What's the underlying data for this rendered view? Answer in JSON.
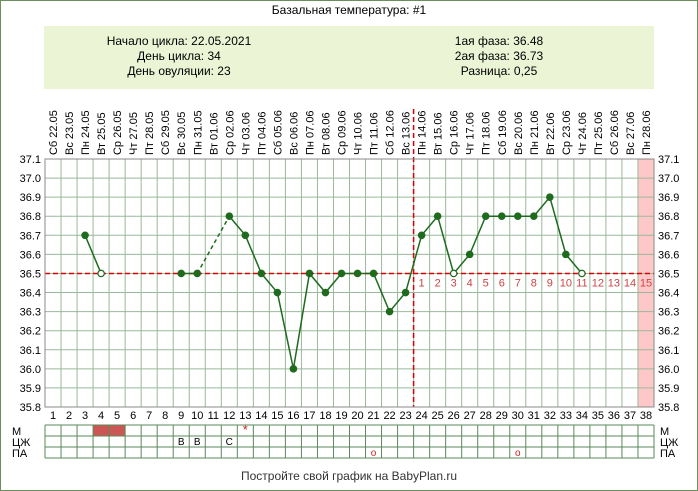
{
  "title": "Базальная температура: #1",
  "info": {
    "cycle_start": "Начало цикла: 22.05.2021",
    "cycle_day": "День цикла: 34",
    "ovulation_day": "День овуляции: 23",
    "phase1": "1ая фаза: 36.48",
    "phase2": "2ая фаза: 36.73",
    "difference": "Разница: 0,25"
  },
  "footer": "Постройте свой график на BabyPlan.ru",
  "colors": {
    "line": "#1e6b1e",
    "coverline": "#dd0000",
    "grid": "#9ab89a",
    "info_bg": "#ecf4d6",
    "menses": "#cc5555",
    "highlight_column": "#ffc8c8",
    "post_ovulation_numbers": "#cc4444"
  },
  "chart_data": {
    "type": "line",
    "title": "Базальная температура: #1",
    "xlabel": "",
    "ylabel": "",
    "ylim": [
      35.8,
      37.1
    ],
    "yticks": [
      "35.8",
      "35.9",
      "36.0",
      "36.1",
      "36.2",
      "36.3",
      "36.4",
      "36.5",
      "36.6",
      "36.7",
      "36.8",
      "36.9",
      "37.0",
      "37.1"
    ],
    "grid": true,
    "cycle_days": [
      "1",
      "2",
      "3",
      "4",
      "5",
      "6",
      "7",
      "8",
      "9",
      "10",
      "11",
      "12",
      "13",
      "14",
      "15",
      "16",
      "17",
      "18",
      "19",
      "20",
      "21",
      "22",
      "23",
      "24",
      "25",
      "26",
      "27",
      "28",
      "29",
      "30",
      "31",
      "32",
      "33",
      "34",
      "35",
      "36",
      "37",
      "38"
    ],
    "date_labels": [
      "Сб 22.05",
      "Вс 23.05",
      "Пн 24.05",
      "Вт 25.05",
      "Ср 26.05",
      "Чт 27.05",
      "Пт 28.05",
      "Сб 29.05",
      "Вс 30.05",
      "Пн 31.05",
      "Вт 01.06",
      "Ср 02.06",
      "Чт 03.06",
      "Пт 04.06",
      "Сб 05.06",
      "Вс 06.06",
      "Пн 07.06",
      "Вт 08.06",
      "Ср 09.06",
      "Чт 10.06",
      "Пт 11.06",
      "Сб 12.06",
      "Вс 13.06",
      "Пн 14.06",
      "Вт 15.06",
      "Ср 16.06",
      "Чт 17.06",
      "Пт 18.06",
      "Сб 19.06",
      "Вс 20.06",
      "Пн 21.06",
      "Вт 22.06",
      "Ср 23.06",
      "Чт 24.06",
      "Пт 25.06",
      "Сб 26.06",
      "Вс 27.06",
      "Пн 28.06"
    ],
    "coverline": 36.5,
    "ovulation_day": 23,
    "highlight_day": 38,
    "series": [
      {
        "points": [
          {
            "x": 3,
            "y": 36.7
          },
          {
            "x": 4,
            "y": 36.5,
            "hollow": true
          },
          {
            "x": 9,
            "y": 36.5
          },
          {
            "x": 10,
            "y": 36.5
          },
          {
            "x": 12,
            "y": 36.8
          },
          {
            "x": 13,
            "y": 36.7
          },
          {
            "x": 14,
            "y": 36.5
          },
          {
            "x": 15,
            "y": 36.4
          },
          {
            "x": 16,
            "y": 36.0
          },
          {
            "x": 17,
            "y": 36.5
          },
          {
            "x": 18,
            "y": 36.4
          },
          {
            "x": 19,
            "y": 36.5
          },
          {
            "x": 20,
            "y": 36.5
          },
          {
            "x": 21,
            "y": 36.5
          },
          {
            "x": 22,
            "y": 36.3
          },
          {
            "x": 23,
            "y": 36.4
          },
          {
            "x": 24,
            "y": 36.7
          },
          {
            "x": 25,
            "y": 36.8
          },
          {
            "x": 26,
            "y": 36.5,
            "hollow": true
          },
          {
            "x": 27,
            "y": 36.6
          },
          {
            "x": 28,
            "y": 36.8
          },
          {
            "x": 29,
            "y": 36.8
          },
          {
            "x": 30,
            "y": 36.8
          },
          {
            "x": 31,
            "y": 36.8
          },
          {
            "x": 32,
            "y": 36.9
          },
          {
            "x": 33,
            "y": 36.6
          },
          {
            "x": 34,
            "y": 36.5,
            "hollow": true
          }
        ],
        "segments": [
          {
            "from": 3,
            "to": 4,
            "dashed": false
          },
          {
            "from": 9,
            "to": 10,
            "dashed": false
          },
          {
            "from": 10,
            "to": 12,
            "dashed": true
          },
          {
            "from": 12,
            "to": 34,
            "dashed": false
          }
        ]
      }
    ],
    "post_ovulation_labels": [
      {
        "day": 24,
        "label": "1"
      },
      {
        "day": 25,
        "label": "2"
      },
      {
        "day": 26,
        "label": "3"
      },
      {
        "day": 27,
        "label": "4"
      },
      {
        "day": 28,
        "label": "5"
      },
      {
        "day": 29,
        "label": "6"
      },
      {
        "day": 30,
        "label": "7"
      },
      {
        "day": 31,
        "label": "8"
      },
      {
        "day": 32,
        "label": "9"
      },
      {
        "day": 33,
        "label": "10"
      },
      {
        "day": 34,
        "label": "11"
      },
      {
        "day": 35,
        "label": "12"
      },
      {
        "day": 36,
        "label": "13"
      },
      {
        "day": 37,
        "label": "14"
      },
      {
        "day": 38,
        "label": "15"
      }
    ],
    "bottom_rows": [
      {
        "label": "М",
        "marks": [
          {
            "day": 4,
            "type": "fill"
          },
          {
            "day": 5,
            "type": "fill"
          },
          {
            "day": 13,
            "type": "text",
            "text": "*"
          }
        ]
      },
      {
        "label": "ЦЖ",
        "marks": [
          {
            "day": 9,
            "type": "text",
            "text": "В"
          },
          {
            "day": 10,
            "type": "text",
            "text": "В"
          },
          {
            "day": 12,
            "type": "text",
            "text": "С"
          }
        ]
      },
      {
        "label": "ПА",
        "marks": [
          {
            "day": 21,
            "type": "text",
            "text": "o"
          },
          {
            "day": 30,
            "type": "text",
            "text": "o"
          }
        ]
      }
    ]
  }
}
